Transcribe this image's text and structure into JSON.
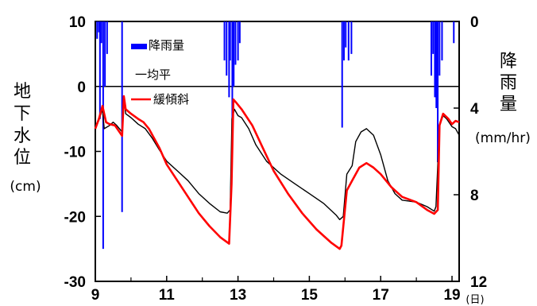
{
  "chart_data": {
    "type": "line",
    "title": "",
    "xlabel_unit": "(日)",
    "ylabel_chars": [
      "地",
      "下",
      "水",
      "位"
    ],
    "ylabel_unit": "(cm)",
    "y2label_chars": [
      "降",
      "雨",
      "量"
    ],
    "y2label_unit": "(mm/hr)",
    "xlim": [
      9,
      19.2
    ],
    "ylim": [
      -30,
      10
    ],
    "y2lim": [
      0,
      12
    ],
    "y2_inverted": true,
    "x_ticks": [
      "9",
      "11",
      "13",
      "15",
      "17",
      "19"
    ],
    "y_ticks": [
      "10",
      "0",
      "-10",
      "-20",
      "-30"
    ],
    "y2_ticks": [
      "0",
      "4",
      "8",
      "12"
    ],
    "legend": [
      "降雨量",
      "一均平",
      "緩傾斜"
    ],
    "legend_position": "top-left",
    "reference_line_y": 0,
    "series": [
      {
        "name": "一均平",
        "color": "#000000",
        "points": [
          [
            9.0,
            -6.0
          ],
          [
            9.1,
            -5.2
          ],
          [
            9.2,
            -3.5
          ],
          [
            9.25,
            -6.5
          ],
          [
            9.4,
            -6.0
          ],
          [
            9.5,
            -5.5
          ],
          [
            9.6,
            -6.0
          ],
          [
            9.75,
            -7.0
          ],
          [
            9.8,
            -1.6
          ],
          [
            9.85,
            -4.2
          ],
          [
            10.0,
            -4.8
          ],
          [
            10.2,
            -5.8
          ],
          [
            10.4,
            -6.5
          ],
          [
            10.6,
            -8.0
          ],
          [
            10.8,
            -9.8
          ],
          [
            11.0,
            -11.5
          ],
          [
            11.3,
            -13.0
          ],
          [
            11.6,
            -14.5
          ],
          [
            11.9,
            -16.5
          ],
          [
            12.2,
            -18.0
          ],
          [
            12.5,
            -19.3
          ],
          [
            12.7,
            -19.5
          ],
          [
            12.78,
            -19.0
          ],
          [
            12.83,
            -5.0
          ],
          [
            12.9,
            -3.5
          ],
          [
            13.0,
            -4.5
          ],
          [
            13.1,
            -4.8
          ],
          [
            13.3,
            -6.5
          ],
          [
            13.5,
            -9.0
          ],
          [
            13.8,
            -11.5
          ],
          [
            14.2,
            -13.5
          ],
          [
            14.6,
            -15.0
          ],
          [
            15.0,
            -16.5
          ],
          [
            15.4,
            -18.0
          ],
          [
            15.75,
            -19.8
          ],
          [
            15.85,
            -20.5
          ],
          [
            15.95,
            -20.0
          ],
          [
            16.05,
            -13.5
          ],
          [
            16.2,
            -12.2
          ],
          [
            16.3,
            -8.5
          ],
          [
            16.45,
            -7.0
          ],
          [
            16.6,
            -6.5
          ],
          [
            16.8,
            -7.5
          ],
          [
            17.0,
            -10.5
          ],
          [
            17.2,
            -14.5
          ],
          [
            17.4,
            -16.5
          ],
          [
            17.6,
            -17.5
          ],
          [
            18.0,
            -17.8
          ],
          [
            18.3,
            -18.5
          ],
          [
            18.5,
            -19.2
          ],
          [
            18.55,
            -18.5
          ],
          [
            18.65,
            -6.0
          ],
          [
            18.75,
            -4.5
          ],
          [
            18.85,
            -5.0
          ],
          [
            19.0,
            -6.2
          ],
          [
            19.1,
            -6.5
          ],
          [
            19.2,
            -7.5
          ]
        ]
      },
      {
        "name": "緩傾斜",
        "color": "#ff0000",
        "points": [
          [
            9.0,
            -6.5
          ],
          [
            9.1,
            -5.0
          ],
          [
            9.2,
            -3.0
          ],
          [
            9.3,
            -5.5
          ],
          [
            9.4,
            -5.8
          ],
          [
            9.55,
            -6.0
          ],
          [
            9.75,
            -7.6
          ],
          [
            9.8,
            -1.5
          ],
          [
            9.85,
            -3.5
          ],
          [
            10.0,
            -4.2
          ],
          [
            10.2,
            -5.0
          ],
          [
            10.35,
            -5.5
          ],
          [
            10.5,
            -6.5
          ],
          [
            10.8,
            -9.5
          ],
          [
            11.0,
            -12.0
          ],
          [
            11.3,
            -14.5
          ],
          [
            11.6,
            -17.0
          ],
          [
            11.9,
            -19.5
          ],
          [
            12.2,
            -21.5
          ],
          [
            12.5,
            -23.2
          ],
          [
            12.75,
            -24.2
          ],
          [
            12.82,
            -15.0
          ],
          [
            12.87,
            -2.0
          ],
          [
            12.95,
            -2.5
          ],
          [
            13.1,
            -3.5
          ],
          [
            13.4,
            -6.0
          ],
          [
            13.7,
            -9.5
          ],
          [
            14.0,
            -13.0
          ],
          [
            14.4,
            -16.5
          ],
          [
            14.8,
            -19.5
          ],
          [
            15.2,
            -22.0
          ],
          [
            15.6,
            -24.0
          ],
          [
            15.85,
            -25.0
          ],
          [
            15.9,
            -24.5
          ],
          [
            16.05,
            -16.0
          ],
          [
            16.2,
            -14.5
          ],
          [
            16.4,
            -12.5
          ],
          [
            16.6,
            -11.8
          ],
          [
            16.8,
            -12.5
          ],
          [
            17.0,
            -13.5
          ],
          [
            17.3,
            -15.5
          ],
          [
            17.6,
            -17.0
          ],
          [
            18.0,
            -17.8
          ],
          [
            18.3,
            -19.0
          ],
          [
            18.5,
            -19.6
          ],
          [
            18.6,
            -19.0
          ],
          [
            18.65,
            -6.0
          ],
          [
            18.75,
            -4.2
          ],
          [
            18.9,
            -5.0
          ],
          [
            19.0,
            -5.8
          ],
          [
            19.1,
            -5.3
          ],
          [
            19.2,
            -5.5
          ]
        ]
      }
    ],
    "rainfall": {
      "name": "降雨量",
      "color": "#0000ff",
      "bars": [
        [
          9.05,
          0.8
        ],
        [
          9.1,
          0.5
        ],
        [
          9.13,
          4.5
        ],
        [
          9.17,
          1.0
        ],
        [
          9.22,
          10.5
        ],
        [
          9.27,
          3.0
        ],
        [
          9.33,
          1.5
        ],
        [
          9.75,
          8.8
        ],
        [
          12.62,
          1.8
        ],
        [
          12.68,
          2.5
        ],
        [
          12.75,
          3.5
        ],
        [
          12.78,
          1.8
        ],
        [
          12.84,
          5.0
        ],
        [
          12.88,
          3.0
        ],
        [
          12.93,
          2.0
        ],
        [
          13.0,
          1.8
        ],
        [
          13.05,
          1.0
        ],
        [
          15.92,
          4.9
        ],
        [
          15.97,
          1.8
        ],
        [
          16.02,
          1.2
        ],
        [
          16.1,
          1.8
        ],
        [
          16.18,
          1.5
        ],
        [
          18.42,
          2.5
        ],
        [
          18.47,
          1.5
        ],
        [
          18.52,
          3.5
        ],
        [
          18.56,
          4.0
        ],
        [
          18.6,
          6.5
        ],
        [
          18.65,
          2.5
        ],
        [
          18.72,
          1.8
        ],
        [
          19.05,
          1.0
        ]
      ]
    }
  }
}
